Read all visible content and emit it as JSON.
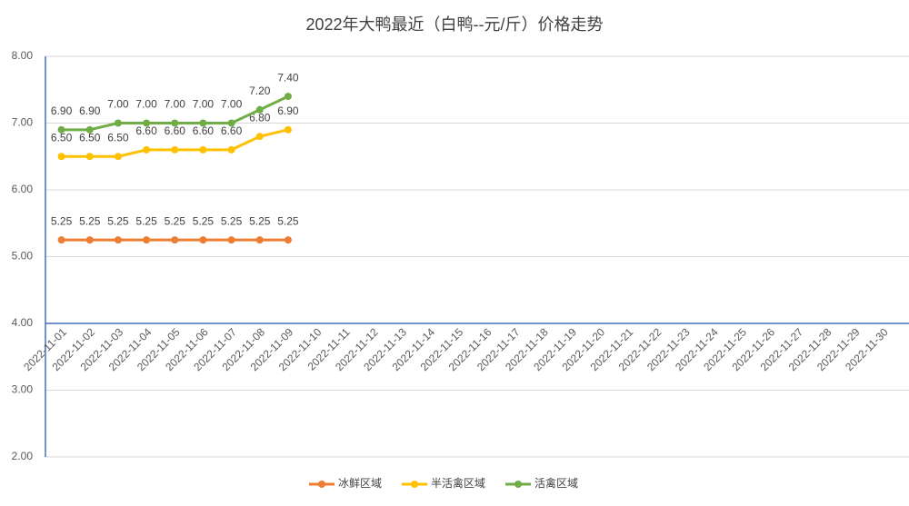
{
  "chart_data": {
    "type": "line",
    "title": "2022年大鸭最近（白鸭--元/斤）价格走势",
    "categories": [
      "2022-11-01",
      "2022-11-02",
      "2022-11-03",
      "2022-11-04",
      "2022-11-05",
      "2022-11-06",
      "2022-11-07",
      "2022-11-08",
      "2022-11-09",
      "2022-11-10",
      "2022-11-11",
      "2022-11-12",
      "2022-11-13",
      "2022-11-14",
      "2022-11-15",
      "2022-11-16",
      "2022-11-17",
      "2022-11-18",
      "2022-11-19",
      "2022-11-20",
      "2022-11-21",
      "2022-11-22",
      "2022-11-23",
      "2022-11-24",
      "2022-11-25",
      "2022-11-26",
      "2022-11-27",
      "2022-11-28",
      "2022-11-29",
      "2022-11-30"
    ],
    "series": [
      {
        "name": "冰鲜区域",
        "color": "#ED7D31",
        "values": [
          5.25,
          5.25,
          5.25,
          5.25,
          5.25,
          5.25,
          5.25,
          5.25,
          5.25,
          null,
          null,
          null,
          null,
          null,
          null,
          null,
          null,
          null,
          null,
          null,
          null,
          null,
          null,
          null,
          null,
          null,
          null,
          null,
          null,
          null
        ],
        "value_labels": [
          "5.25",
          "5.25",
          "5.25",
          "5.25",
          "5.25",
          "5.25",
          "5.25",
          "5.25",
          "5.25",
          null,
          null,
          null,
          null,
          null,
          null,
          null,
          null,
          null,
          null,
          null,
          null,
          null,
          null,
          null,
          null,
          null,
          null,
          null,
          null,
          null
        ]
      },
      {
        "name": "半活禽区域",
        "color": "#FFC000",
        "values": [
          6.5,
          6.5,
          6.5,
          6.6,
          6.6,
          6.6,
          6.6,
          6.8,
          6.9,
          null,
          null,
          null,
          null,
          null,
          null,
          null,
          null,
          null,
          null,
          null,
          null,
          null,
          null,
          null,
          null,
          null,
          null,
          null,
          null,
          null
        ],
        "value_labels": [
          "6.50",
          "6.50",
          "6.50",
          "6.60",
          "6.60",
          "6.60",
          "6.60",
          "6.80",
          "6.90",
          null,
          null,
          null,
          null,
          null,
          null,
          null,
          null,
          null,
          null,
          null,
          null,
          null,
          null,
          null,
          null,
          null,
          null,
          null,
          null,
          null
        ]
      },
      {
        "name": "活禽区域",
        "color": "#70AD47",
        "values": [
          6.9,
          6.9,
          7,
          7,
          7,
          7,
          7,
          7.2,
          7.4,
          null,
          null,
          null,
          null,
          null,
          null,
          null,
          null,
          null,
          null,
          null,
          null,
          null,
          null,
          null,
          null,
          null,
          null,
          null,
          null,
          null
        ],
        "value_labels": [
          "6.90",
          "6.90",
          "7.00",
          "7.00",
          "7.00",
          "7.00",
          "7.00",
          "7.20",
          "7.40",
          null,
          null,
          null,
          null,
          null,
          null,
          null,
          null,
          null,
          null,
          null,
          null,
          null,
          null,
          null,
          null,
          null,
          null,
          null,
          null,
          null
        ]
      }
    ],
    "ylim": [
      2,
      8
    ],
    "yticks": [
      {
        "value": 2,
        "label": "2.00"
      },
      {
        "value": 3,
        "label": "3.00"
      },
      {
        "value": 4,
        "label": "4.00"
      },
      {
        "value": 5,
        "label": "5.00"
      },
      {
        "value": 6,
        "label": "6.00"
      },
      {
        "value": 7,
        "label": "7.00"
      },
      {
        "value": 8,
        "label": "8.00"
      }
    ],
    "x_axis_crosses": 4,
    "grid": true,
    "legend": "bottom"
  }
}
